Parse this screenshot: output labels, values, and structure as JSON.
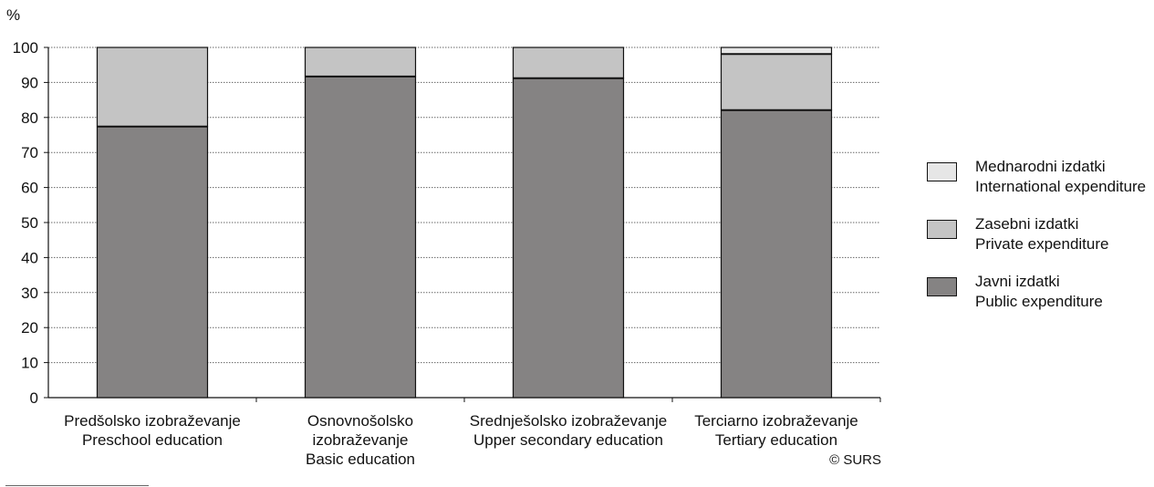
{
  "chart_data": {
    "type": "bar",
    "stacked": true,
    "ylabel": "%",
    "ylim": [
      0,
      100
    ],
    "yticks": [
      0,
      10,
      20,
      30,
      40,
      50,
      60,
      70,
      80,
      90,
      100
    ],
    "grid": true,
    "legend_position": "right",
    "categories": [
      [
        "Predšolsko izobraževanje",
        "Preschool education"
      ],
      [
        "Osnovnošolsko",
        "izobraževanje",
        "Basic education"
      ],
      [
        "Srednješolsko izobraževanje",
        "Upper secondary education"
      ],
      [
        "Terciarno izobraževanje",
        "Tertiary education"
      ]
    ],
    "series": [
      {
        "name": [
          "Javni izdatki",
          "Public expenditure"
        ],
        "color": "#858383",
        "values": [
          77.4,
          91.7,
          91.2,
          82.1
        ]
      },
      {
        "name": [
          "Zasebni izdatki",
          "Private expenditure"
        ],
        "color": "#c4c4c4",
        "values": [
          22.6,
          8.3,
          8.8,
          16.0
        ]
      },
      {
        "name": [
          "Mednarodni izdatki",
          "International expenditure"
        ],
        "color": "#e6e6e6",
        "values": [
          0,
          0,
          0,
          1.9
        ]
      }
    ],
    "source": "© SURS"
  }
}
